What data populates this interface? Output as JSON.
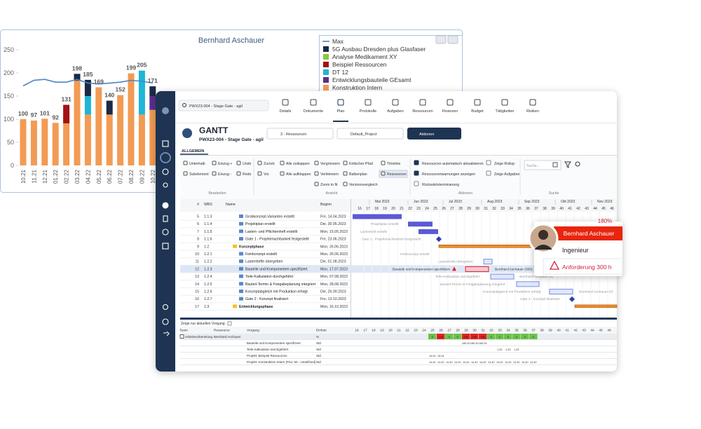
{
  "chart_data": {
    "type": "bar",
    "title": "Bernhard Aschauer",
    "categories": [
      "10.21",
      "11.21",
      "12.21",
      "01.22",
      "02.22",
      "03.22",
      "04.22",
      "05.22",
      "06.22",
      "07.22",
      "08.22",
      "09.22",
      "10.22"
    ],
    "series": [
      {
        "name": "Max",
        "type": "line",
        "color": "#4a86c8",
        "values": [
          172,
          184,
          186,
          180,
          180,
          186,
          178,
          176,
          178,
          180,
          184,
          182,
          178
        ]
      },
      {
        "name": "5G Ausbau Dresden plus Glasfaser",
        "color": "#1b2a45",
        "values": [
          null,
          null,
          null,
          null,
          null,
          15,
          35,
          null,
          30,
          null,
          null,
          null,
          21
        ]
      },
      {
        "name": "Analyse Medikament XY",
        "color": "#8cc63f",
        "values": [
          null,
          null,
          null,
          null,
          null,
          null,
          null,
          null,
          null,
          null,
          null,
          null,
          null
        ]
      },
      {
        "name": "Beispiel Ressourcen",
        "color": "#a31212",
        "values": [
          null,
          null,
          null,
          null,
          40,
          null,
          null,
          null,
          null,
          null,
          null,
          null,
          null
        ]
      },
      {
        "name": "DT 12",
        "color": "#1fb5d6",
        "values": [
          null,
          null,
          null,
          null,
          null,
          null,
          40,
          null,
          null,
          null,
          null,
          95,
          null
        ]
      },
      {
        "name": "Entwicklungsbauteile GEsamt",
        "color": "#5b2d8e",
        "values": [
          null,
          null,
          null,
          null,
          null,
          null,
          null,
          null,
          null,
          null,
          null,
          null,
          30
        ]
      },
      {
        "name": "Konstruktion Intern",
        "color": "#f29b55",
        "values": [
          100,
          97,
          101,
          92,
          91,
          183,
          110,
          169,
          110,
          152,
          199,
          110,
          120
        ]
      }
    ],
    "totals": [
      100,
      97,
      101,
      92,
      131,
      198,
      185,
      169,
      140,
      152,
      199,
      205,
      171
    ],
    "ylim": [
      0,
      250
    ],
    "yticks": [
      0,
      50,
      100,
      150,
      200,
      250
    ],
    "grid": false
  },
  "app": {
    "search": "PWX23-004 - Stage Gate - agil",
    "tabs": [
      "Details",
      "Dokumente",
      "Plan",
      "Protokolle",
      "Aufgaben",
      "Ressourcen",
      "Finanzen",
      "Budget",
      "Tätigkeiten",
      "Risiken"
    ],
    "active_tab": 2,
    "title": "GANTT",
    "subtitle": "PWX23-004 - Stage Gate - agil",
    "view_select": "3 - Ressourcen",
    "project_select": "Default_Project",
    "actions_button": "Aktionen",
    "section_tab": "ALLGEMEIN",
    "ribbon": {
      "bearbeiten": {
        "label": "Bearbeiten",
        "items": [
          "Unterhalb",
          "Subelement",
          "Einzug +",
          "Einzug -",
          "Undo",
          "Redo"
        ]
      },
      "ansicht": {
        "label": "Ansicht",
        "items": [
          "Zurück",
          "Vor",
          "Alle zuklappen",
          "Alle aufklappen",
          "Vergrössern",
          "Verkleinern",
          "Zoom to fit",
          "Kritischer Pfad",
          "Balkenplan",
          "Versionsvergleich",
          "Timeline",
          "Ressourcen"
        ]
      },
      "aktionen": {
        "label": "Aktionen",
        "items": [
          "Ressourcen automatisch aktualisieren",
          "Ressourcenwarnungen anzeigen",
          "Rückwärtsterminierung",
          "Zeige Rollup",
          "Zeige Aufgaben"
        ],
        "checked": [
          true,
          true,
          false,
          false,
          false
        ]
      },
      "suche": {
        "label": "Suche",
        "placeholder": "Suche..."
      }
    },
    "table": {
      "columns": [
        "#",
        "WBS",
        "Name",
        "Beginn"
      ],
      "selected_row": 7,
      "rows": [
        [
          5,
          "1.1.3",
          "Grobkonzept-Varianten erstellt",
          "Fre, 14.04.2023"
        ],
        [
          6,
          "1.1.4",
          "Projektplan erstellt",
          "Die, 30.05.2023"
        ],
        [
          7,
          "1.1.5",
          "Lasten- und Pflichtenheft erstellt",
          "Mon, 15.05.2023"
        ],
        [
          8,
          "1.1.6",
          "Gate 1 - Projektmachbarkeit festgestellt",
          "Fre, 23.06.2023"
        ],
        [
          9,
          "1.2",
          "Konzeptphase",
          "Mon, 26.06.2023"
        ],
        [
          10,
          "1.2.1",
          "Feinkonzept erstellt",
          "Mon, 26.06.2023"
        ],
        [
          11,
          "1.2.2",
          "Lastenhefte übergeben",
          "Die, 01.08.2023"
        ],
        [
          12,
          "1.2.3",
          "Bauteile und Komponenten spezifiziert",
          "Mon, 17.07.2023"
        ],
        [
          13,
          "1.2.4",
          "Teile-Kalkulation durchgeführt",
          "Mon, 07.08.2023"
        ],
        [
          14,
          "1.2.5",
          "Bauteil-Termin & Freigabeplanung integriert",
          "Mon, 28.08.2023"
        ],
        [
          15,
          "1.2.6",
          "Konzeptabgleich mit Produktion erfolgt",
          "Die, 26.09.2023"
        ],
        [
          16,
          "1.2.7",
          "Gate 2 - Konzept finalisiert",
          "Fre, 13.10.2023"
        ],
        [
          17,
          "1.3",
          "Entwicklungsphase",
          "Mon, 16.10.2023"
        ]
      ]
    },
    "gantt": {
      "months": [
        "Mai 2023",
        "Jun 2023",
        "Jul 2023",
        "Aug 2023",
        "Sep 2023",
        "Okt 2023",
        "Nov 2023"
      ],
      "weeks": [
        16,
        17,
        18,
        19,
        20,
        21,
        22,
        23,
        24,
        25,
        26,
        27,
        28,
        29,
        30,
        31,
        32,
        33,
        34,
        35,
        36,
        37,
        38,
        39,
        40,
        41,
        42,
        43,
        44,
        45,
        46
      ],
      "bar_labels": [
        "Projektplan erstellt",
        "Lastenheft erstellt",
        "Gate 1 - Projektmachbarkeit festgestellt",
        "Feinkonzept erstellt",
        "Lastenhefte übergeben",
        "Bauteile und Komponenten spezifiziert",
        "Bernhard Aschauer (300)",
        "Teile-Kalkulation durchgeführt",
        "Bernhard Aschauer (4)",
        "Bauteil-Termin & Freigabeplanung integriert",
        "Konzeptabgleich mit Produktion erfolgt",
        "Bernhard Aschauer (0)",
        "Gate 2 - Konzept finalisiert"
      ]
    },
    "popup": {
      "name": "Bernhard Aschauer",
      "load": "180%",
      "role": "Ingenieur",
      "warning": "Anforderung 300 h"
    },
    "load": {
      "filter_label": "Zeige nur aktuellen Vorgang:",
      "columns": [
        "Team",
        "Ressource",
        "Vorgang",
        "Einheit"
      ],
      "rows": [
        {
          "team": "Arbeitsvorbereitung",
          "resource": "Bernhard Aschauer",
          "task": null,
          "unit": "%",
          "cells": [
            null,
            null,
            null,
            null,
            null,
            null,
            null,
            null,
            null,
            {
              "value": 0,
              "color": "#6cc24a"
            },
            {
              "value": 140,
              "color": "#e02424"
            },
            {
              "value": 0,
              "color": "#6cc24a"
            },
            {
              "value": 0,
              "color": "#6cc24a"
            },
            {
              "value": 180,
              "color": "#e02424"
            },
            {
              "value": 180,
              "color": "#e02424"
            },
            {
              "value": 180,
              "color": "#e02424"
            },
            {
              "value": 0,
              "color": "#6cc24a"
            },
            {
              "value": 0,
              "color": "#6cc24a"
            },
            {
              "value": 0,
              "color": "#6cc24a"
            },
            {
              "value": 0,
              "color": "#6cc24a"
            },
            {
              "value": 0,
              "color": "#6cc24a"
            },
            {
              "value": 0,
              "color": "#6cc24a"
            },
            null,
            null,
            null,
            null,
            null,
            null,
            null,
            null,
            null
          ]
        },
        {
          "team": null,
          "resource": null,
          "task": "Bauteile und Komponenten spezifiziert",
          "unit": "Std",
          "cells": [
            null,
            null,
            null,
            null,
            null,
            null,
            null,
            null,
            null,
            null,
            null,
            null,
            null,
            "180,00",
            "180,00",
            "180,00",
            null,
            null,
            null,
            null,
            null,
            null,
            null,
            null,
            null,
            null,
            null,
            null,
            null,
            null,
            null
          ]
        },
        {
          "team": null,
          "resource": null,
          "task": "Teile-Kalkulation durchgeführt",
          "unit": "Std",
          "cells": [
            null,
            null,
            null,
            null,
            null,
            null,
            null,
            null,
            null,
            null,
            null,
            null,
            null,
            null,
            null,
            null,
            null,
            "1,33",
            "1,33",
            "1,33",
            null,
            null,
            null,
            null,
            null,
            null,
            null,
            null,
            null,
            null,
            null
          ]
        },
        {
          "team": null,
          "resource": null,
          "task": "Projekt: Beispiel Ressourcen",
          "unit": "Std",
          "cells": [
            null,
            null,
            null,
            null,
            null,
            null,
            null,
            null,
            null,
            "19,04",
            "19,04",
            null,
            null,
            null,
            null,
            null,
            null,
            null,
            null,
            null,
            null,
            null,
            null,
            null,
            null,
            null,
            null,
            null,
            null,
            null,
            null
          ]
        },
        {
          "team": null,
          "resource": null,
          "task": "Projekt: Konstruktion Intern (Prio: 50 - Undefined)",
          "unit": "Std",
          "cells": [
            null,
            null,
            null,
            null,
            null,
            null,
            null,
            null,
            null,
            "14,40",
            "14,40",
            "14,40",
            "14,40",
            "14,40",
            "14,40",
            "14,40",
            "14,40",
            "14,40",
            "14,40",
            "14,40",
            "14,40",
            "14,40",
            null,
            null,
            null,
            null,
            null,
            null,
            null,
            null,
            null
          ]
        }
      ]
    }
  }
}
